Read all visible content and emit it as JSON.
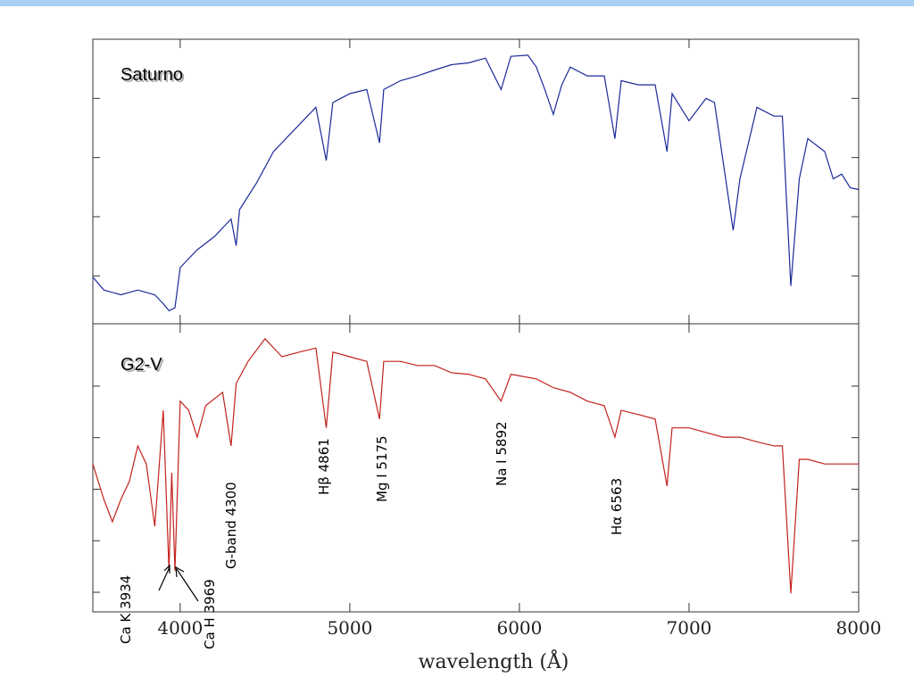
{
  "chart_data": [
    {
      "type": "line",
      "title": "Saturno",
      "xlim": [
        3485,
        8000
      ],
      "ylim": [
        0.19,
        5.0
      ],
      "yticks": [
        1,
        2,
        3,
        4
      ],
      "series": [
        {
          "color": "#1c2a9a",
          "x": [
            3485,
            3550,
            3650,
            3750,
            3850,
            3900,
            3934,
            3969,
            4000,
            4050,
            4100,
            4200,
            4300,
            4330,
            4350,
            4450,
            4550,
            4650,
            4750,
            4800,
            4861,
            4900,
            5000,
            5100,
            5175,
            5200,
            5300,
            5400,
            5500,
            5600,
            5700,
            5800,
            5892,
            5950,
            6050,
            6100,
            6150,
            6200,
            6250,
            6300,
            6400,
            6500,
            6563,
            6600,
            6700,
            6800,
            6870,
            6900,
            7000,
            7100,
            7150,
            7200,
            7260,
            7300,
            7400,
            7500,
            7550,
            7600,
            7650,
            7700,
            7800,
            7850,
            7900,
            7950,
            8000
          ],
          "values": [
            0.98,
            0.76,
            0.68,
            0.76,
            0.68,
            0.53,
            0.41,
            0.46,
            1.14,
            1.29,
            1.44,
            1.66,
            1.96,
            1.51,
            2.12,
            2.57,
            3.1,
            3.4,
            3.7,
            3.85,
            2.95,
            3.93,
            4.08,
            4.15,
            3.25,
            4.15,
            4.3,
            4.38,
            4.48,
            4.57,
            4.6,
            4.68,
            4.15,
            4.71,
            4.73,
            4.53,
            4.15,
            3.73,
            4.23,
            4.53,
            4.38,
            4.38,
            3.32,
            4.3,
            4.23,
            4.23,
            3.1,
            4.08,
            3.62,
            4.0,
            3.93,
            2.95,
            1.77,
            2.64,
            3.85,
            3.7,
            3.7,
            0.83,
            2.64,
            3.32,
            3.1,
            2.64,
            2.72,
            2.49,
            2.46
          ]
        }
      ]
    },
    {
      "type": "line",
      "title": "G2-V",
      "xlabel": "wavelength (Å)",
      "xlim": [
        3485,
        8000
      ],
      "xticks": [
        4000,
        5000,
        6000,
        7000,
        8000
      ],
      "ylim": [
        0.62,
        6.21
      ],
      "yticks": [
        1,
        2,
        3,
        4,
        5
      ],
      "annotations": [
        "Ca K 3934",
        "Ca H 3969",
        "G-band 4300",
        "Hβ 4861",
        "Mg I 5175",
        "Na I 5892",
        "Hα 6563"
      ],
      "series": [
        {
          "color": "#c2221c",
          "x": [
            3485,
            3550,
            3600,
            3650,
            3700,
            3750,
            3800,
            3850,
            3900,
            3934,
            3950,
            3969,
            4000,
            4050,
            4100,
            4150,
            4250,
            4300,
            4330,
            4400,
            4500,
            4600,
            4700,
            4800,
            4861,
            4900,
            5000,
            5100,
            5175,
            5200,
            5300,
            5400,
            5500,
            5600,
            5700,
            5800,
            5892,
            5950,
            6100,
            6200,
            6300,
            6400,
            6500,
            6563,
            6600,
            6700,
            6800,
            6870,
            6900,
            7000,
            7100,
            7200,
            7300,
            7400,
            7500,
            7550,
            7600,
            7650,
            7700,
            7800,
            7900,
            8000
          ],
          "values": [
            3.49,
            2.8,
            2.37,
            2.8,
            3.15,
            3.84,
            3.49,
            2.28,
            4.53,
            1.42,
            3.32,
            1.42,
            4.71,
            4.53,
            4.01,
            4.62,
            4.88,
            3.84,
            5.05,
            5.48,
            5.92,
            5.57,
            5.66,
            5.74,
            4.19,
            5.66,
            5.57,
            5.48,
            4.36,
            5.48,
            5.48,
            5.4,
            5.4,
            5.26,
            5.23,
            5.14,
            4.71,
            5.23,
            5.14,
            4.97,
            4.88,
            4.71,
            4.62,
            4.01,
            4.53,
            4.45,
            4.36,
            3.06,
            4.19,
            4.19,
            4.1,
            4.01,
            4.01,
            3.92,
            3.84,
            3.84,
            0.98,
            3.58,
            3.58,
            3.49,
            3.49,
            3.49
          ]
        }
      ]
    }
  ]
}
